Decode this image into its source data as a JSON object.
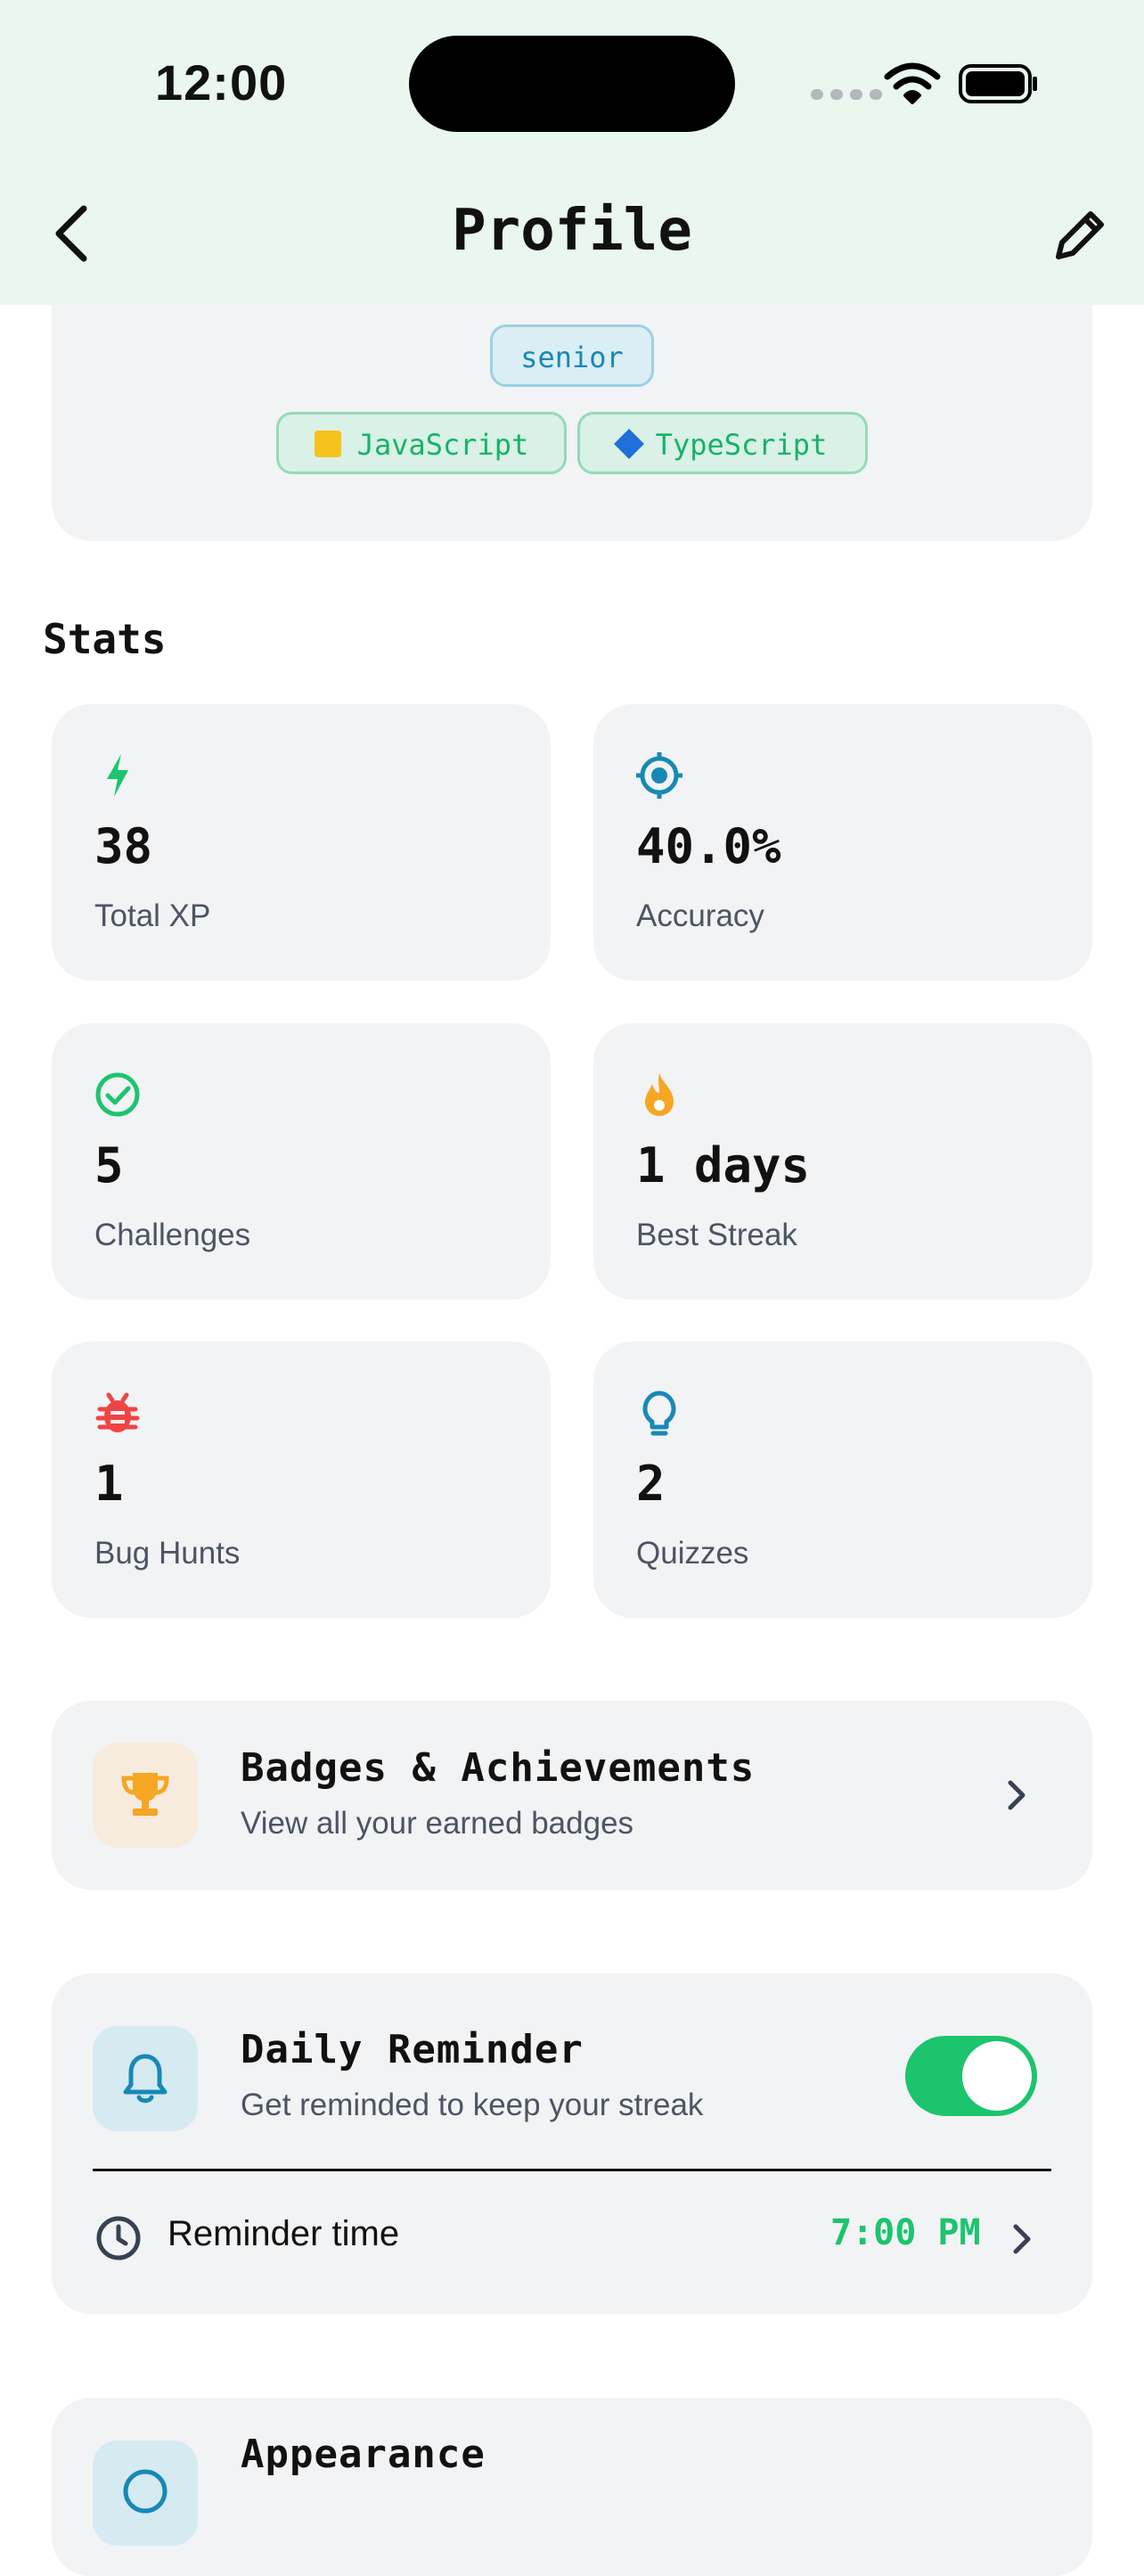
{
  "status_bar": {
    "time": "12:00"
  },
  "nav": {
    "title": "Profile",
    "back_icon": "chevron-left-icon",
    "edit_icon": "pencil-icon"
  },
  "profile": {
    "level": "senior",
    "languages": [
      {
        "label": "JavaScript",
        "icon": "yellow-square",
        "color": "#f6c21d"
      },
      {
        "label": "TypeScript",
        "icon": "blue-diamond",
        "color": "#1f6fd8"
      }
    ]
  },
  "stats": {
    "title": "Stats",
    "items": [
      {
        "value": "38",
        "label": "Total XP",
        "icon": "bolt-icon",
        "color": "#1cc46e"
      },
      {
        "value": "40.0%",
        "label": "Accuracy",
        "icon": "target-icon",
        "color": "#1789b5"
      },
      {
        "value": "5",
        "label": "Challenges",
        "icon": "check-circle-icon",
        "color": "#1cc46e"
      },
      {
        "value": "1 days",
        "label": "Best Streak",
        "icon": "flame-icon",
        "color": "#f5a623"
      },
      {
        "value": "1",
        "label": "Bug Hunts",
        "icon": "bug-icon",
        "color": "#ef4444"
      },
      {
        "value": "2",
        "label": "Quizzes",
        "icon": "lightbulb-icon",
        "color": "#1789b5"
      }
    ]
  },
  "badges": {
    "title": "Badges & Achievements",
    "subtitle": "View all your earned badges",
    "icon": "trophy-icon"
  },
  "reminder": {
    "title": "Daily Reminder",
    "subtitle": "Get reminded to keep your streak",
    "enabled": true,
    "time_label": "Reminder time",
    "time_value": "7:00 PM"
  },
  "appearance": {
    "title": "Appearance"
  },
  "colors": {
    "accent": "#1cc46e",
    "header_bg": "#e9f7ef",
    "card_bg": "#f2f3f5"
  }
}
